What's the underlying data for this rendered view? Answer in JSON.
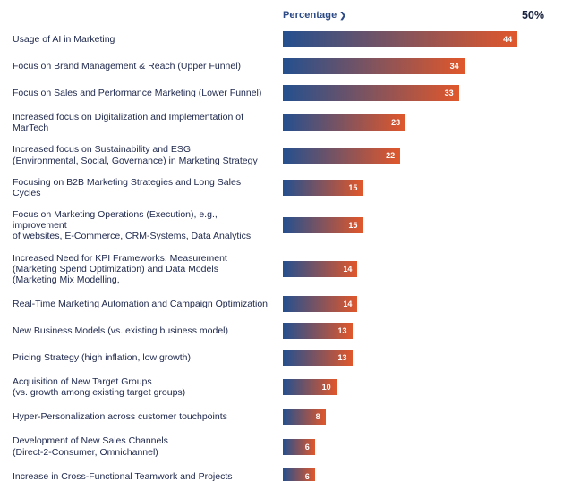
{
  "header": {
    "axis_label": "Percentage",
    "axis_chevron": "❯",
    "axis_max_label": "50%"
  },
  "colors": {
    "bar_gradient_start": "#24508F",
    "bar_gradient_end": "#E0572B",
    "header_label": "#2C4A85",
    "axis_max": "#18223E",
    "category_label": "#202A4E",
    "value_label": "#FFFFFF"
  },
  "chart_data": {
    "type": "bar",
    "orientation": "horizontal",
    "title": "",
    "xlabel": "Percentage",
    "ylabel": "",
    "xlim": [
      0,
      50
    ],
    "grid": false,
    "legend": false,
    "value_labels": "inside-right, white, bold",
    "bar_style": "horizontal gradient from dark blue to orange",
    "categories": [
      "Usage of AI in Marketing",
      "Focus on Brand Management & Reach (Upper Funnel)",
      "Focus on Sales and Performance Marketing (Lower Funnel)",
      "Increased focus on Digitalization and Implementation of MarTech",
      "Increased focus on Sustainability and ESG\n(Environmental, Social, Governance) in Marketing Strategy",
      "Focusing on B2B Marketing Strategies and Long Sales Cycles",
      "Focus on Marketing Operations (Execution), e.g., improvement\nof websites, E-Commerce, CRM-Systems, Data Analytics",
      "Increased Need for KPI Frameworks, Measurement\n(Marketing Spend Optimization) and Data Models\n(Marketing Mix Modelling,",
      "Real-Time Marketing Automation and Campaign Optimization",
      "New Business Models (vs. existing business model)",
      "Pricing Strategy (high inflation, low growth)",
      "Acquisition of New Target Groups\n(vs. growth among existing target groups)",
      "Hyper-Personalization across customer touchpoints",
      "Development of New Sales Channels\n(Direct-2-Consumer, Omnichannel)",
      "Increase in Cross-Functional Teamwork and Projects"
    ],
    "values": [
      44,
      34,
      33,
      23,
      22,
      15,
      15,
      14,
      14,
      13,
      13,
      10,
      8,
      6,
      6
    ]
  }
}
